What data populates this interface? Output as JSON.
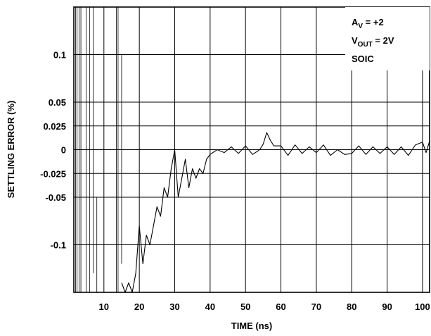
{
  "chart_data": {
    "type": "line",
    "title": "",
    "xlabel": "TIME (ns)",
    "ylabel": "SETTLING ERROR (%)",
    "x_tick_labels": [
      "10",
      "20",
      "30",
      "40",
      "50",
      "60",
      "70",
      "80",
      "90",
      "100"
    ],
    "y_tick_labels": [
      "0.1",
      "0.05",
      "0.025",
      "0",
      "-0.025",
      "-0.05",
      "-0.1"
    ],
    "y_tick_values": [
      0.1,
      0.05,
      0.025,
      0,
      -0.025,
      -0.05,
      -0.1
    ],
    "xlim": [
      1.5,
      102
    ],
    "ylim": [
      -0.15,
      0.15
    ],
    "grid": true,
    "annotation": {
      "av_main": "A",
      "av_sub": "V",
      "av_rest": " = +2",
      "vout_main": "V",
      "vout_sub": "OUT",
      "vout_rest": " = 2V",
      "package": "SOIC"
    },
    "series": [
      {
        "x": [
          15,
          16,
          17,
          18,
          19,
          20,
          21,
          22,
          23,
          24,
          25,
          26,
          27,
          28,
          29,
          30,
          31,
          32,
          33,
          34,
          35,
          36,
          37,
          38,
          39,
          40,
          42,
          44,
          46,
          48,
          50,
          52,
          54,
          55,
          56,
          57,
          58,
          60,
          62,
          64,
          66,
          68,
          70,
          72,
          74,
          76,
          78,
          80,
          82,
          84,
          86,
          88,
          90,
          92,
          94,
          96,
          98,
          100,
          101,
          102
        ],
        "y": [
          -0.14,
          -0.15,
          -0.14,
          -0.15,
          -0.13,
          -0.08,
          -0.12,
          -0.09,
          -0.1,
          -0.08,
          -0.06,
          -0.07,
          -0.04,
          -0.05,
          -0.02,
          0.0,
          -0.05,
          -0.03,
          -0.01,
          -0.04,
          -0.02,
          -0.03,
          -0.02,
          -0.025,
          -0.01,
          -0.005,
          0.0,
          -0.003,
          0.003,
          -0.004,
          0.004,
          -0.005,
          0.0,
          0.006,
          0.018,
          0.01,
          0.004,
          0.004,
          -0.006,
          0.005,
          -0.004,
          0.003,
          -0.003,
          0.005,
          -0.006,
          0.0,
          -0.005,
          -0.004,
          0.004,
          -0.005,
          0.003,
          -0.004,
          0.003,
          -0.005,
          0.003,
          -0.006,
          0.005,
          0.008,
          -0.003,
          0.009
        ]
      }
    ],
    "ringing": [
      {
        "x": 2.0,
        "top": 0.15,
        "bottom": -0.15
      },
      {
        "x": 2.4,
        "top": 0.15,
        "bottom": -0.15
      },
      {
        "x": 3.0,
        "top": 0.15,
        "bottom": -0.15
      },
      {
        "x": 3.5,
        "top": 0.15,
        "bottom": -0.15
      },
      {
        "x": 5.0,
        "top": 0.15,
        "bottom": -0.15
      },
      {
        "x": 6.0,
        "top": 0.15,
        "bottom": -0.15
      },
      {
        "x": 7.0,
        "top": 0.15,
        "bottom": -0.13
      },
      {
        "x": 8.0,
        "top": -0.05,
        "bottom": -0.15
      },
      {
        "x": 13.5,
        "top": 0.15,
        "bottom": -0.15
      },
      {
        "x": 14.0,
        "top": 0.15,
        "bottom": -0.15
      },
      {
        "x": 15.0,
        "top": 0.1,
        "bottom": -0.12
      }
    ]
  }
}
